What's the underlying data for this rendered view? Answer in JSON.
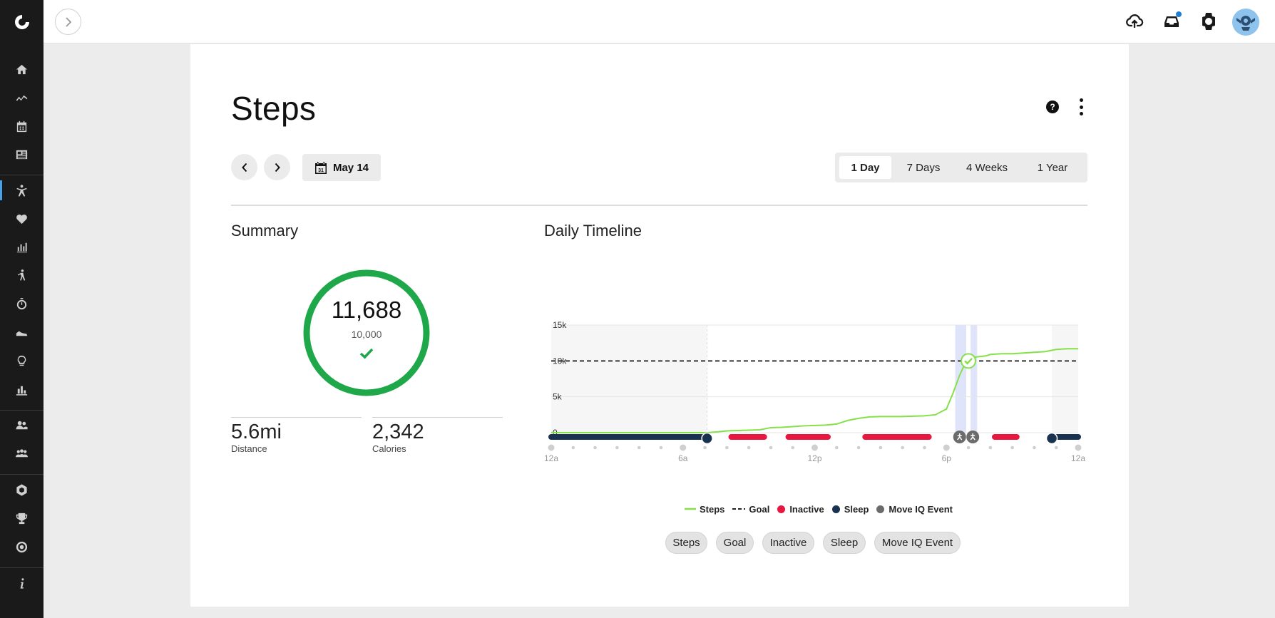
{
  "topbar": {
    "icons": [
      "sync-upload-icon",
      "inbox-icon",
      "watch-icon"
    ]
  },
  "sidebar": {
    "items": [
      "home-icon",
      "activities-icon",
      "calendar-icon",
      "news-icon",
      "steps-icon",
      "heart-icon",
      "reports-icon",
      "golf-icon",
      "stopwatch-icon",
      "shoe-icon",
      "insights-icon",
      "stats-icon",
      "connections-icon",
      "groups-icon",
      "badges-icon",
      "trophy-icon",
      "goals-icon",
      "info-icon"
    ]
  },
  "page": {
    "title": "Steps",
    "date_label": "May 14"
  },
  "range_tabs": [
    "1 Day",
    "7 Days",
    "4 Weeks",
    "1 Year"
  ],
  "summary": {
    "title": "Summary",
    "steps_value": "11,688",
    "goal_value": "10,000",
    "distance_value": "5.6mi",
    "distance_label": "Distance",
    "calories_value": "2,342",
    "calories_label": "Calories"
  },
  "timeline": {
    "title": "Daily Timeline",
    "legend": {
      "steps": "Steps",
      "goal": "Goal",
      "inactive": "Inactive",
      "sleep": "Sleep",
      "move_iq": "Move IQ Event"
    },
    "filters": [
      "Steps",
      "Goal",
      "Inactive",
      "Sleep",
      "Move IQ Event"
    ]
  },
  "colors": {
    "accent_green": "#1fa84a",
    "steps_line": "#86e04a",
    "inactive": "#e8173f",
    "sleep": "#18324f",
    "move_iq": "#6b6b6b"
  },
  "chart_data": {
    "type": "line",
    "ylabel_ticks": [
      "15k",
      "10k",
      "5k",
      "0"
    ],
    "x_ticks": [
      "12a",
      "6a",
      "12p",
      "6p",
      "12a"
    ],
    "ylim": [
      0,
      15000
    ],
    "goal": 10000,
    "series": [
      {
        "name": "Steps",
        "x": [
          0,
          7.1,
          7.5,
          8.0,
          8.5,
          9.0,
          9.5,
          10.0,
          10.5,
          11.0,
          11.5,
          12.0,
          12.5,
          13.0,
          13.5,
          14.0,
          14.5,
          15.0,
          15.5,
          16.0,
          16.5,
          17.0,
          17.5,
          18.0,
          18.3,
          18.6,
          18.9,
          19.2,
          19.5,
          19.8,
          20.0,
          20.5,
          21.0,
          21.5,
          22.0,
          22.5,
          23.0,
          23.5,
          24.0
        ],
        "y": [
          0,
          0,
          100,
          250,
          300,
          350,
          400,
          700,
          750,
          850,
          950,
          1000,
          1050,
          1200,
          1700,
          2000,
          2200,
          2250,
          2250,
          2250,
          2300,
          2350,
          2500,
          3300,
          5500,
          8000,
          10000,
          10500,
          10600,
          10700,
          10900,
          11000,
          11000,
          11100,
          11200,
          11300,
          11600,
          11700,
          11700
        ]
      }
    ],
    "sleep_intervals": [
      [
        0,
        7.1
      ],
      [
        22.8,
        24.0
      ]
    ],
    "inactive_intervals": [
      [
        8.2,
        9.7
      ],
      [
        10.8,
        12.6
      ],
      [
        14.3,
        17.2
      ],
      [
        20.2,
        21.2
      ]
    ],
    "move_iq_events": [
      18.6,
      19.2
    ],
    "shaded_blocks": [
      [
        18.4,
        18.9
      ],
      [
        19.1,
        19.4
      ]
    ],
    "goal_reached_at": 19.0
  }
}
